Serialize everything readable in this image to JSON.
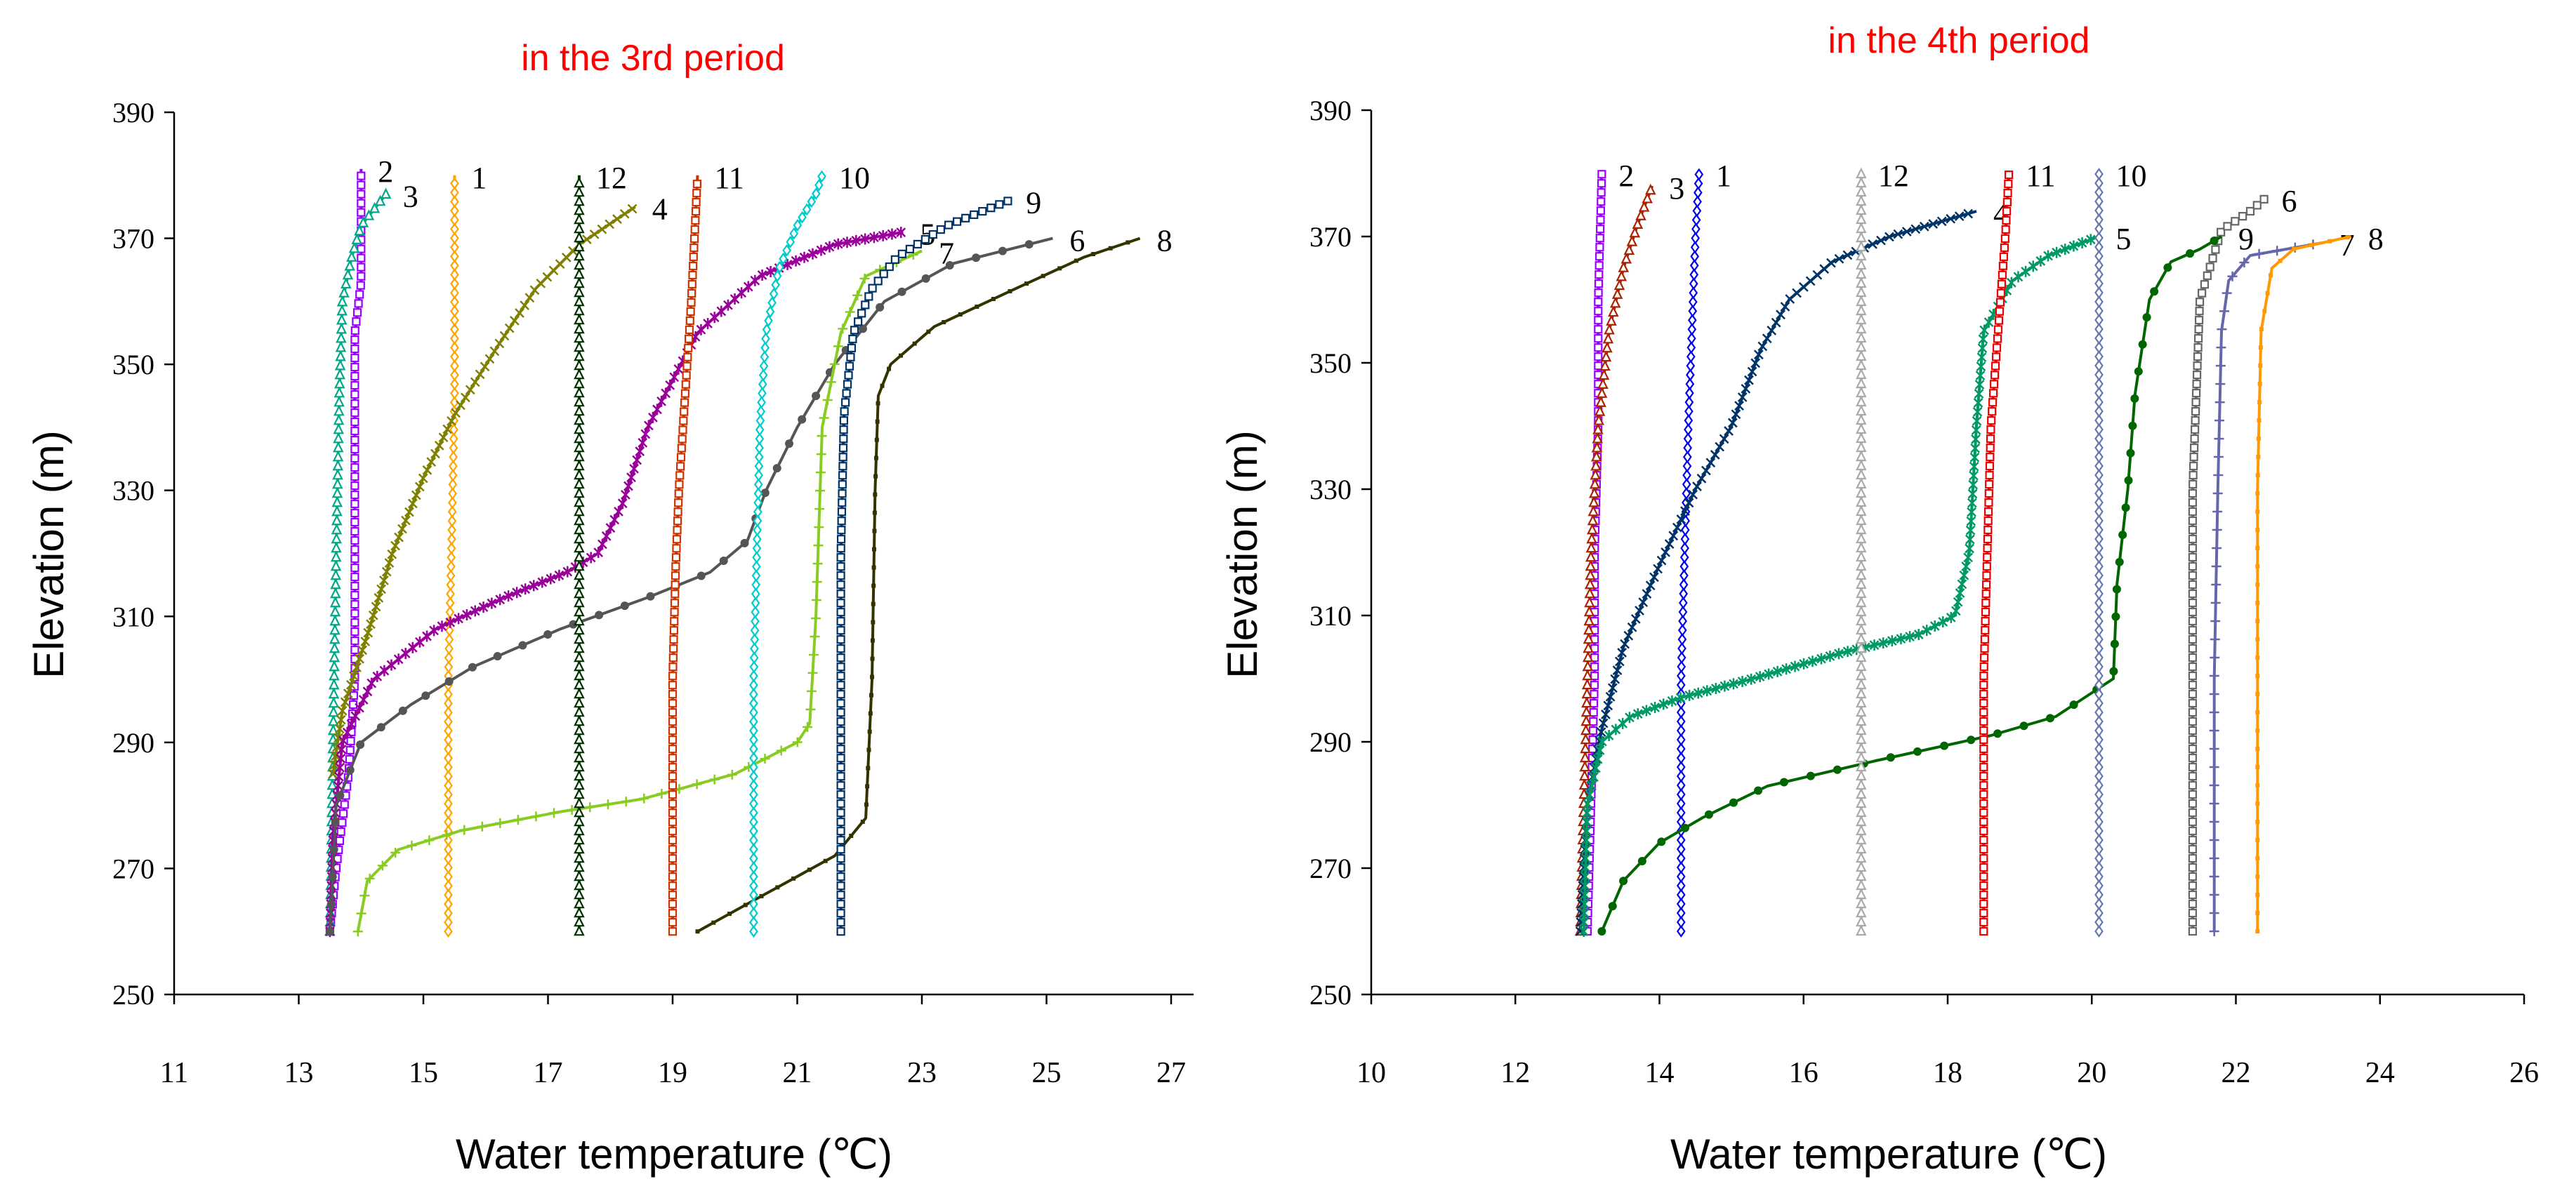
{
  "chart_data": [
    {
      "type": "line",
      "title": "in the 3rd period",
      "title_color": "#ff0000",
      "xlabel": "Water temperature (℃)",
      "ylabel": "Elevation (m)",
      "xlim": [
        11,
        27
      ],
      "ylim": [
        250,
        390
      ],
      "xticks": [
        "11",
        "13",
        "15",
        "17",
        "19",
        "21",
        "23",
        "25",
        "27"
      ],
      "yticks": [
        "250",
        "270",
        "290",
        "310",
        "330",
        "350",
        "370",
        "390"
      ],
      "series": [
        {
          "name": "1",
          "color": "#ffa500",
          "marker": "diamond",
          "x": [
            15.4,
            15.4,
            15.4,
            15.45,
            15.5,
            15.5,
            15.5
          ],
          "y": [
            260,
            280,
            300,
            320,
            345,
            365,
            380
          ]
        },
        {
          "name": "2",
          "color": "#9900ff",
          "marker": "square",
          "x": [
            13.5,
            13.6,
            13.8,
            13.9,
            13.9,
            13.9,
            14.0,
            14.0,
            14.0
          ],
          "y": [
            260,
            270,
            285,
            300,
            330,
            355,
            363,
            372,
            381
          ]
        },
        {
          "name": "3",
          "color": "#00a88a",
          "marker": "triangle",
          "x": [
            13.5,
            13.55,
            13.6,
            13.65,
            13.7,
            13.85,
            14.0,
            14.4
          ],
          "y": [
            260,
            290,
            320,
            345,
            360,
            367,
            372,
            377
          ]
        },
        {
          "name": "4",
          "color": "#808000",
          "marker": "x",
          "x": [
            13.55,
            13.7,
            14.1,
            14.5,
            15.0,
            15.5,
            16.2,
            16.8,
            17.5,
            18.4
          ],
          "y": [
            285,
            295,
            307,
            320,
            332,
            342,
            353,
            362,
            369,
            375
          ]
        },
        {
          "name": "5",
          "color": "#990099",
          "marker": "star",
          "x": [
            13.5,
            13.55,
            13.7,
            14.2,
            15.2,
            16.3,
            17.3,
            17.8,
            18.2,
            18.6,
            19.4,
            20.4,
            21.6,
            22.7
          ],
          "y": [
            260,
            275,
            290,
            300,
            308,
            313,
            317,
            320,
            328,
            340,
            355,
            364,
            369,
            371
          ]
        },
        {
          "name": "6",
          "color": "#555555",
          "marker": "circle",
          "x": [
            13.5,
            13.6,
            14.0,
            14.8,
            15.8,
            17.2,
            18.6,
            19.6,
            20.2,
            20.5,
            21.0,
            21.6,
            22.4,
            23.5,
            25.1
          ],
          "y": [
            260,
            280,
            290,
            296,
            302,
            308,
            313,
            317,
            322,
            330,
            340,
            350,
            360,
            366,
            370
          ]
        },
        {
          "name": "7",
          "color": "#88cc22",
          "marker": "plus",
          "x": [
            13.95,
            14.1,
            14.6,
            15.6,
            17.2,
            18.5,
            20.0,
            21.0,
            21.2,
            21.3,
            21.4,
            21.7,
            22.1,
            23.0
          ],
          "y": [
            260,
            268,
            273,
            276,
            279,
            281,
            285,
            290,
            293,
            310,
            340,
            355,
            364,
            368
          ]
        },
        {
          "name": "8",
          "color": "#333300",
          "marker": "dash",
          "x": [
            19.4,
            20.5,
            21.6,
            22.1,
            22.2,
            22.25,
            22.3,
            22.5,
            23.2,
            24.5,
            25.6,
            26.5
          ],
          "y": [
            260,
            266,
            272,
            278,
            300,
            330,
            345,
            350,
            356,
            362,
            367,
            370
          ]
        },
        {
          "name": "9",
          "color": "#003366",
          "marker": "square",
          "x": [
            21.7,
            21.7,
            21.7,
            21.7,
            21.75,
            21.9,
            22.2,
            22.6,
            23.4,
            24.4
          ],
          "y": [
            260,
            280,
            300,
            320,
            342,
            355,
            362,
            367,
            372,
            376
          ]
        },
        {
          "name": "10",
          "color": "#00cccc",
          "marker": "diamond",
          "x": [
            20.3,
            20.3,
            20.3,
            20.35,
            20.4,
            20.5,
            20.7,
            21.0,
            21.3,
            21.4
          ],
          "y": [
            260,
            280,
            300,
            320,
            340,
            355,
            365,
            372,
            377,
            380
          ]
        },
        {
          "name": "11",
          "color": "#cc3300",
          "marker": "square",
          "x": [
            19.0,
            19.0,
            19.0,
            19.05,
            19.1,
            19.2,
            19.3,
            19.35,
            19.4
          ],
          "y": [
            260,
            280,
            300,
            318,
            330,
            345,
            360,
            370,
            380
          ]
        },
        {
          "name": "12",
          "color": "#003300",
          "marker": "triangle",
          "x": [
            17.5,
            17.5,
            17.5,
            17.5,
            17.5,
            17.5
          ],
          "y": [
            260,
            280,
            300,
            330,
            355,
            380
          ]
        }
      ]
    },
    {
      "type": "line",
      "title": "in the 4th period",
      "title_color": "#ff0000",
      "xlabel": "Water temperature (℃)",
      "ylabel": "Elevation (m)",
      "xlim": [
        10,
        26
      ],
      "ylim": [
        250,
        390
      ],
      "xticks": [
        "10",
        "12",
        "14",
        "16",
        "18",
        "20",
        "22",
        "24",
        "26"
      ],
      "yticks": [
        "250",
        "270",
        "290",
        "310",
        "330",
        "350",
        "370",
        "390"
      ],
      "series": [
        {
          "name": "1",
          "color": "#0000ee",
          "marker": "diamond",
          "x": [
            14.3,
            14.3,
            14.3,
            14.35,
            14.4,
            14.45,
            14.5,
            14.55
          ],
          "y": [
            260,
            280,
            300,
            320,
            340,
            355,
            370,
            380
          ]
        },
        {
          "name": "2",
          "color": "#9900ff",
          "marker": "square",
          "x": [
            13.0,
            13.05,
            13.1,
            13.1,
            13.15,
            13.15,
            13.2
          ],
          "y": [
            260,
            280,
            300,
            320,
            340,
            360,
            380
          ]
        },
        {
          "name": "3",
          "color": "#aa2200",
          "marker": "triangle",
          "x": [
            12.9,
            12.95,
            13.0,
            13.05,
            13.15,
            13.3,
            13.5,
            13.7,
            13.9
          ],
          "y": [
            260,
            280,
            300,
            320,
            340,
            355,
            365,
            372,
            378
          ]
        },
        {
          "name": "4",
          "color": "#003366",
          "marker": "x",
          "x": [
            12.9,
            13.0,
            13.2,
            13.5,
            14.0,
            14.5,
            15.0,
            15.4,
            15.8,
            16.4,
            17.2,
            18.4
          ],
          "y": [
            260,
            280,
            292,
            305,
            318,
            330,
            340,
            352,
            360,
            366,
            370,
            374
          ]
        },
        {
          "name": "5",
          "color": "#009966",
          "marker": "star",
          "x": [
            12.95,
            13.0,
            13.2,
            13.6,
            14.3,
            15.3,
            16.5,
            17.6,
            18.1,
            18.3,
            18.4,
            18.5,
            18.9,
            19.4,
            20.1
          ],
          "y": [
            260,
            280,
            290,
            294,
            297,
            300,
            304,
            307,
            310,
            320,
            340,
            355,
            363,
            367,
            370
          ]
        },
        {
          "name": "6",
          "color": "#666666",
          "marker": "square",
          "x": [
            21.4,
            21.4,
            21.4,
            21.4,
            21.5,
            21.8,
            22.2,
            22.4
          ],
          "y": [
            260,
            280,
            300,
            330,
            360,
            371,
            374,
            376
          ]
        },
        {
          "name": "7",
          "color": "#6666aa",
          "marker": "plus",
          "x": [
            21.7,
            21.7,
            21.7,
            21.75,
            21.8,
            21.9,
            22.2,
            22.7,
            23.2
          ],
          "y": [
            260,
            280,
            300,
            330,
            355,
            363,
            367,
            368,
            369
          ]
        },
        {
          "name": "8",
          "color": "#ff9900",
          "marker": "dash",
          "x": [
            22.3,
            22.3,
            22.3,
            22.3,
            22.35,
            22.5,
            22.8,
            23.2,
            23.6
          ],
          "y": [
            260,
            280,
            300,
            330,
            355,
            365,
            368,
            369,
            370
          ]
        },
        {
          "name": "9",
          "color": "#006600",
          "marker": "circle",
          "x": [
            13.2,
            13.5,
            14.0,
            14.6,
            15.5,
            17.0,
            18.6,
            19.5,
            19.9,
            20.3,
            20.35,
            20.5,
            20.6,
            20.8,
            21.1,
            21.5,
            21.8
          ],
          "y": [
            260,
            268,
            274,
            278,
            283,
            287,
            291,
            294,
            297,
            300,
            315,
            330,
            345,
            360,
            366,
            368,
            370
          ]
        },
        {
          "name": "10",
          "color": "#6677aa",
          "marker": "diamond",
          "x": [
            20.1,
            20.1,
            20.1,
            20.1,
            20.1,
            20.1
          ],
          "y": [
            260,
            280,
            300,
            330,
            355,
            380
          ]
        },
        {
          "name": "11",
          "color": "#ee0000",
          "marker": "square",
          "x": [
            18.5,
            18.5,
            18.5,
            18.55,
            18.6,
            18.7,
            18.8,
            18.85
          ],
          "y": [
            260,
            280,
            300,
            320,
            340,
            355,
            370,
            380
          ]
        },
        {
          "name": "12",
          "color": "#aaaaaa",
          "marker": "triangle",
          "x": [
            16.8,
            16.8,
            16.8,
            16.8,
            16.8,
            16.8
          ],
          "y": [
            260,
            280,
            300,
            330,
            355,
            380
          ]
        }
      ]
    }
  ]
}
